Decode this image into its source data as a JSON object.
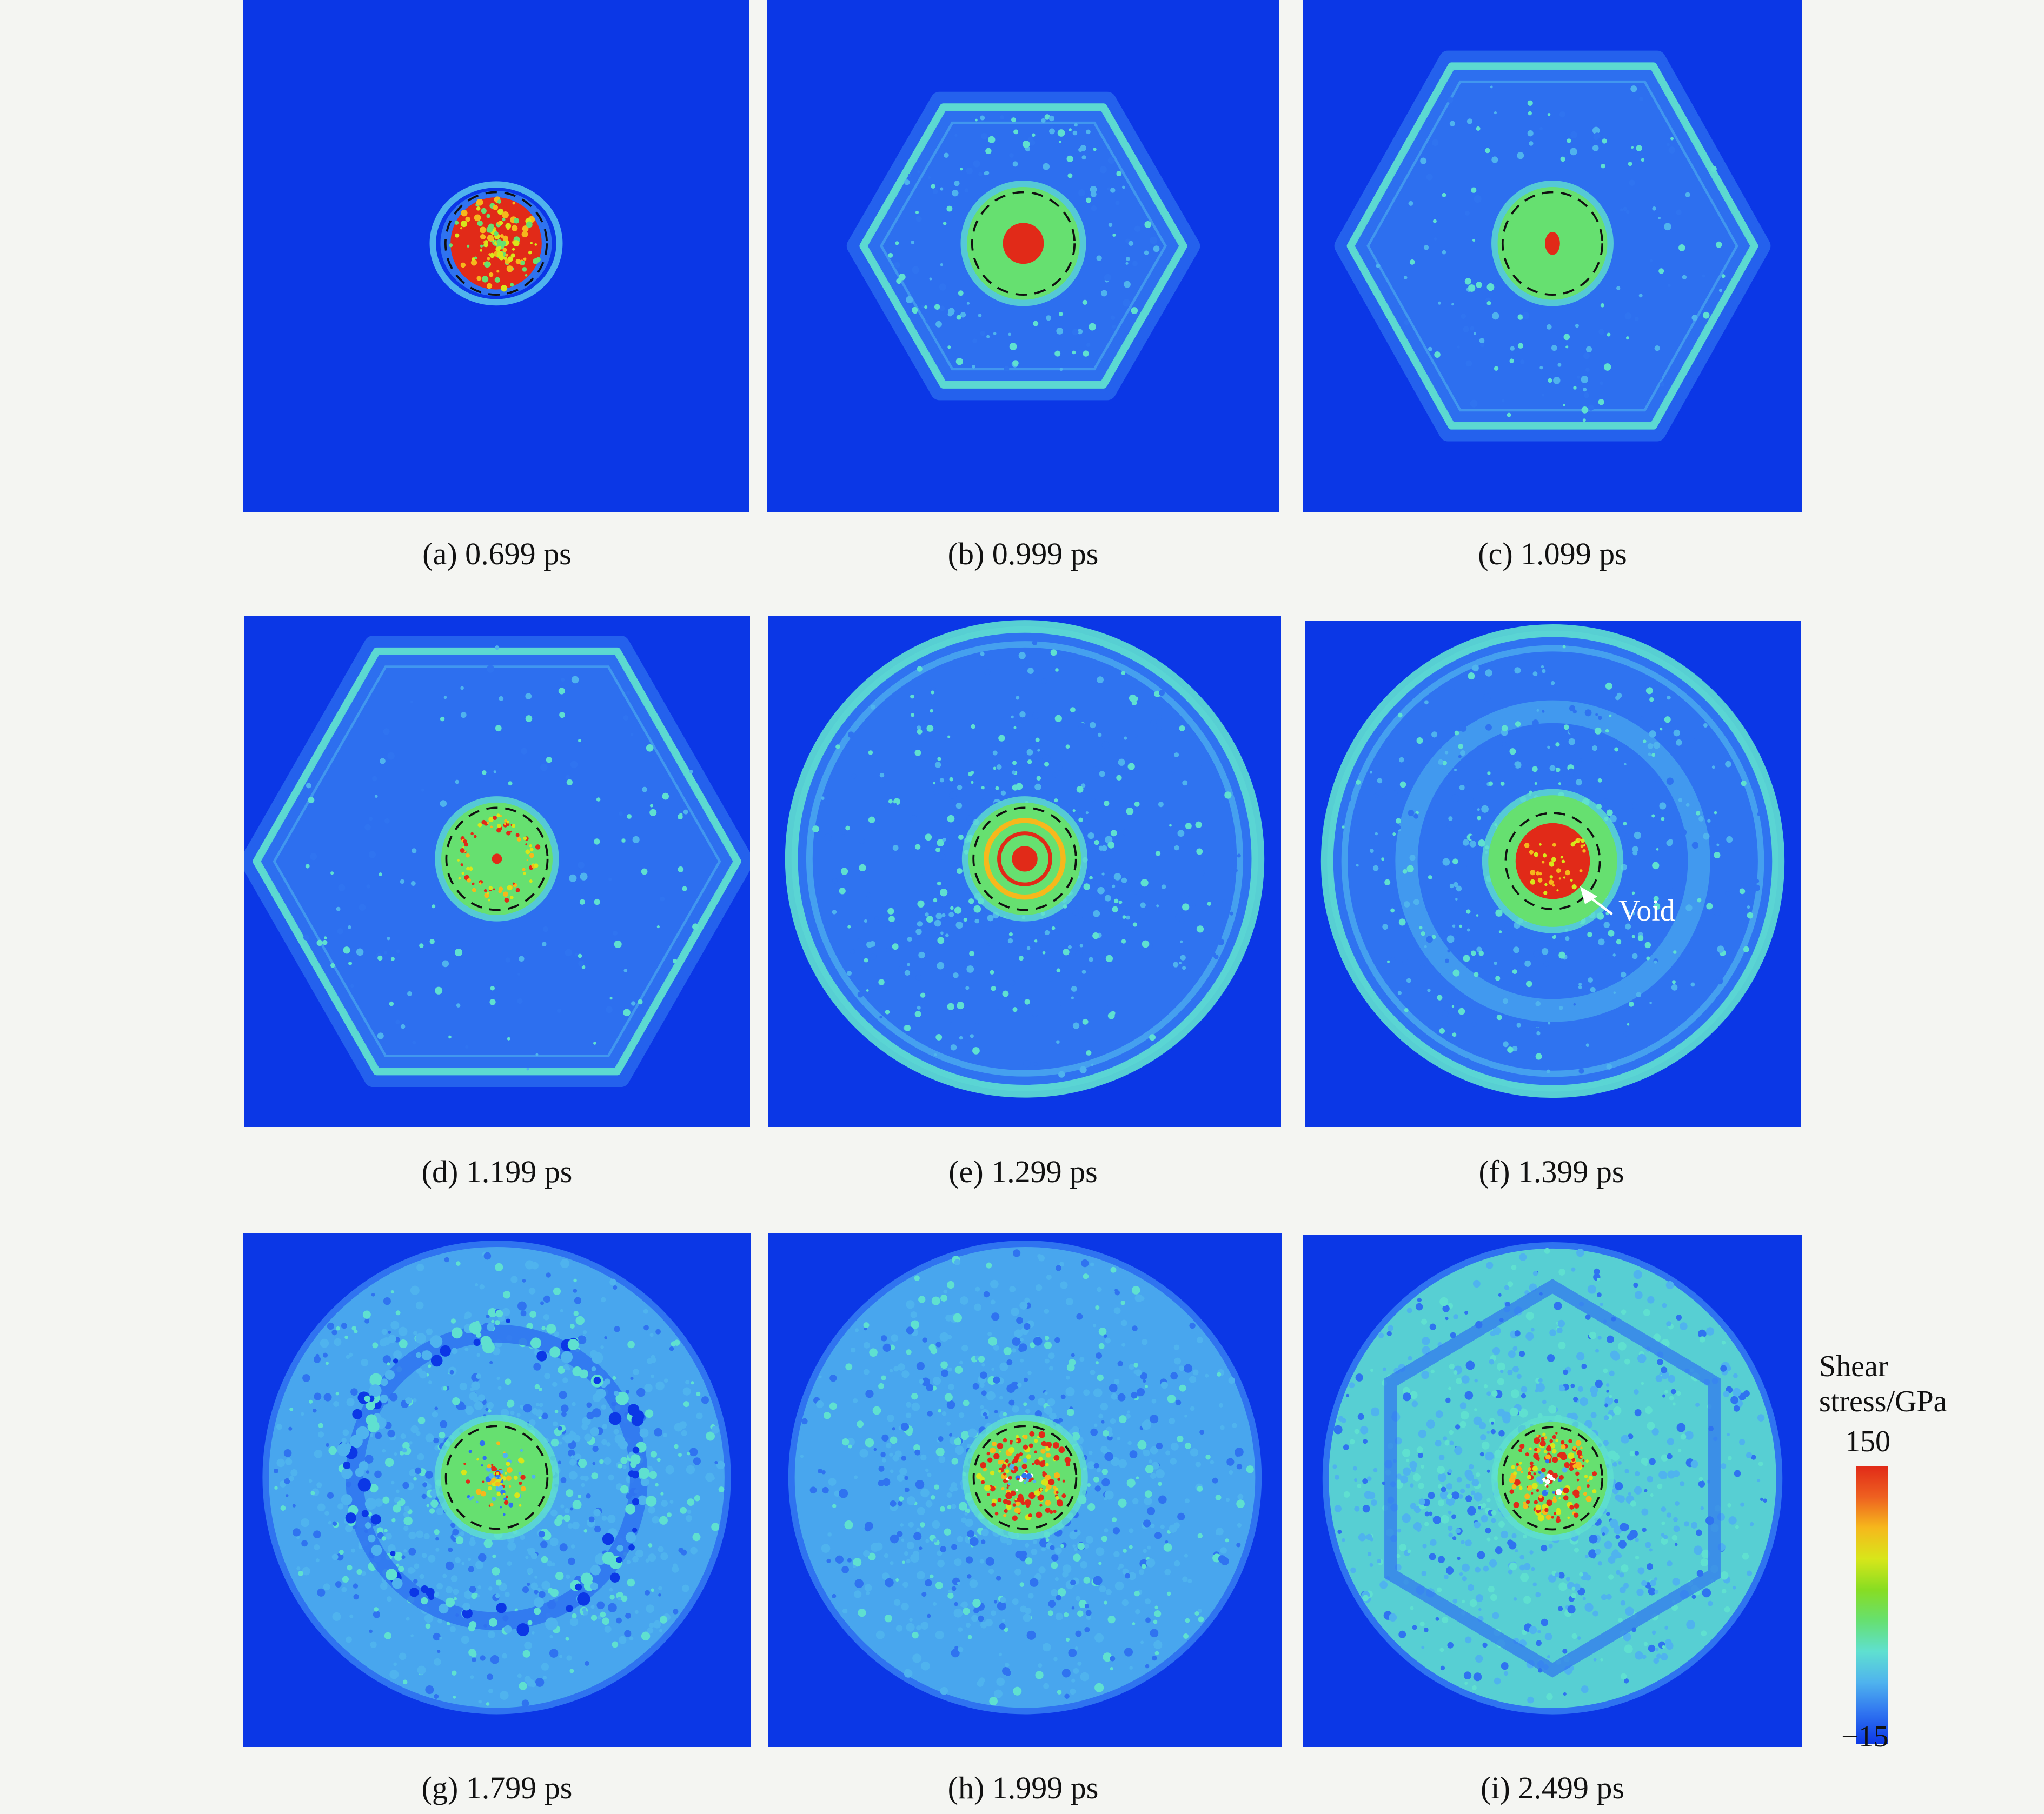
{
  "figure": {
    "panels": [
      {
        "id": "a",
        "caption": "(a) 0.699 ps",
        "time_ps": 0.699,
        "front": "small",
        "core": "full",
        "outer": "none",
        "void": false
      },
      {
        "id": "b",
        "caption": "(b) 0.999 ps",
        "time_ps": 0.999,
        "front": "hexagon",
        "core": "red-disc",
        "outer": "none",
        "void": false
      },
      {
        "id": "c",
        "caption": "(c) 1.099 ps",
        "time_ps": 1.099,
        "front": "hexagon",
        "core": "red-dot",
        "outer": "none",
        "void": false
      },
      {
        "id": "d",
        "caption": "(d) 1.199 ps",
        "time_ps": 1.199,
        "front": "hexagon",
        "core": "ring-dot",
        "outer": "none",
        "void": false
      },
      {
        "id": "e",
        "caption": "(e) 1.299 ps",
        "time_ps": 1.299,
        "front": "circle",
        "core": "ring-disc",
        "outer": "none",
        "void": false
      },
      {
        "id": "f",
        "caption": "(f) 1.399 ps",
        "time_ps": 1.399,
        "front": "circle",
        "core": "red-large",
        "outer": "none",
        "void": true
      },
      {
        "id": "g",
        "caption": "(g) 1.799 ps",
        "time_ps": 1.799,
        "front": "circle",
        "core": "scatter",
        "outer": "filled-ring",
        "void": false
      },
      {
        "id": "h",
        "caption": "(h) 1.999 ps",
        "time_ps": 1.999,
        "front": "circle",
        "core": "ring-scatter",
        "outer": "filled",
        "void": false
      },
      {
        "id": "i",
        "caption": "(i) 2.499 ps",
        "time_ps": 2.499,
        "front": "circle",
        "core": "ring-scatter",
        "outer": "filled-green",
        "void": false
      }
    ],
    "annotation": {
      "text": "Void",
      "panel": "f"
    },
    "colormap": [
      "#0b37e6",
      "#2f73f0",
      "#4fb3ee",
      "#5fe0d0",
      "#66e070",
      "#88dd22",
      "#d8e61a",
      "#f6b81c",
      "#ee6020",
      "#e12a18"
    ],
    "colorbar": {
      "title_line1": "Shear",
      "title_line2": "stress/GPa",
      "max_label": "150",
      "min_label": "−15",
      "max": 150,
      "min": -15
    }
  }
}
